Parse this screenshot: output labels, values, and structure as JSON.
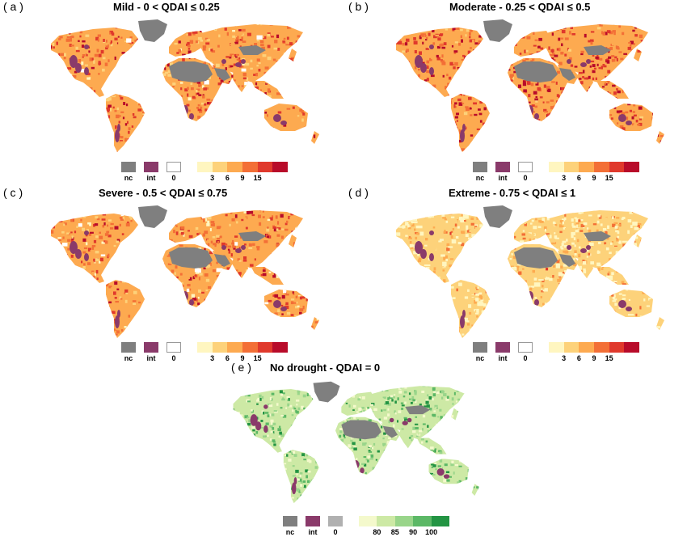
{
  "colors": {
    "nc": "#7f7f7f",
    "int": "#8a3a6a",
    "zero_drought": "#ffffff",
    "zero_nodrought": "#b0b0b0",
    "drought_ramp": [
      "#fff6c0",
      "#fdd27a",
      "#fdaa50",
      "#f36f36",
      "#e0392c",
      "#b80b2a"
    ],
    "nodrought_ramp": [
      "#f4f9cc",
      "#cde9a5",
      "#99d58a",
      "#5cb866",
      "#239443"
    ],
    "ocean": "#ffffff",
    "greenland": "#7f7f7f"
  },
  "panels": [
    {
      "label": "( a )",
      "title": "Mild - 0 < QDAI ≤ 0.25",
      "intensity": 0.65,
      "theme": "drought"
    },
    {
      "label": "( b )",
      "title": "Moderate -  0.25 < QDAI ≤ 0.5",
      "intensity": 0.85,
      "theme": "drought"
    },
    {
      "label": "( c )",
      "title": "Severe - 0.5 < QDAI ≤ 0.75",
      "intensity": 0.6,
      "theme": "drought"
    },
    {
      "label": "( d )",
      "title": "Extreme -   0.75 < QDAI ≤ 1",
      "intensity": 0.22,
      "theme": "drought"
    },
    {
      "label": "( e )",
      "title": "No drought - QDAI = 0",
      "intensity": 0.5,
      "theme": "nodrought"
    }
  ],
  "legend_drought": {
    "nc": "nc",
    "int": "int",
    "zero": "0",
    "ticks": [
      "3",
      "6",
      "9",
      "15"
    ]
  },
  "legend_nodrought": {
    "nc": "nc",
    "int": "int",
    "zero": "0",
    "ticks": [
      "80",
      "85",
      "90",
      "100"
    ]
  }
}
